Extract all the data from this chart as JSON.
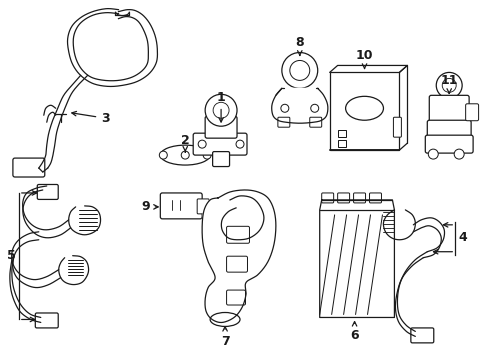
{
  "bg_color": "#ffffff",
  "line_color": "#1a1a1a",
  "lw": 0.9,
  "fig_width": 4.89,
  "fig_height": 3.6,
  "dpi": 100
}
